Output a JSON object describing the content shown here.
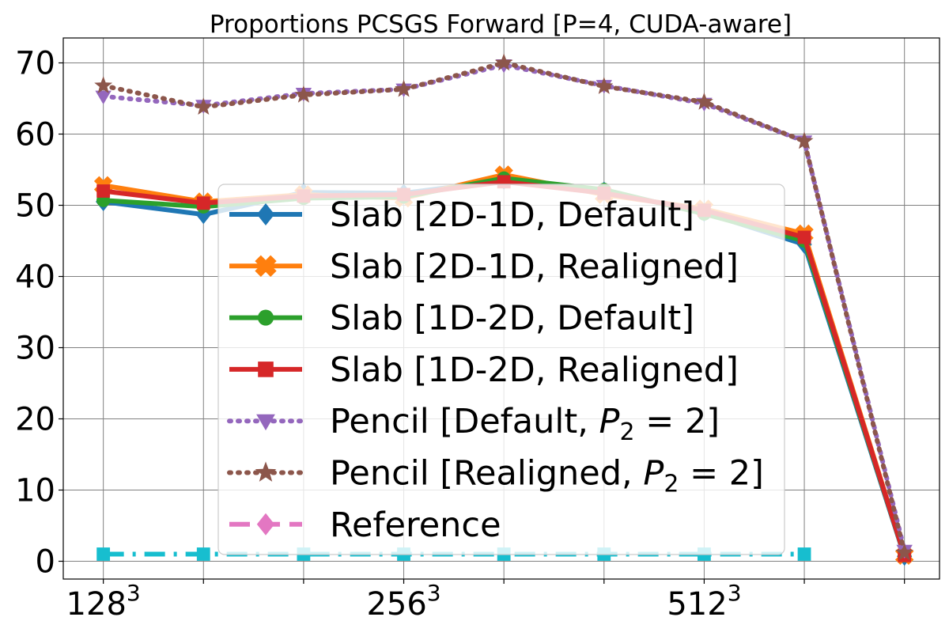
{
  "chart_data": {
    "type": "line",
    "title": "Proportions PCSGS Forward [P=4, CUDA-aware]",
    "xlabel": "",
    "ylabel": "",
    "x": [
      1,
      2,
      3,
      4,
      5,
      6,
      7,
      8,
      9
    ],
    "x_tick_labels": [
      {
        "x": 1,
        "base": "128",
        "sup": "3"
      },
      {
        "x": 2,
        "base": "",
        "sup": ""
      },
      {
        "x": 3,
        "base": "",
        "sup": ""
      },
      {
        "x": 4,
        "base": "256",
        "sup": "3"
      },
      {
        "x": 5,
        "base": "",
        "sup": ""
      },
      {
        "x": 6,
        "base": "",
        "sup": ""
      },
      {
        "x": 7,
        "base": "512",
        "sup": "3"
      },
      {
        "x": 8,
        "base": "",
        "sup": ""
      },
      {
        "x": 9,
        "base": "",
        "sup": ""
      }
    ],
    "xlim": [
      0.6,
      9.35
    ],
    "ylim": [
      -2.5,
      73.5
    ],
    "y_ticks": [
      0,
      10,
      20,
      30,
      40,
      50,
      60,
      70
    ],
    "grid": true,
    "legend_position": "center",
    "series": [
      {
        "name": "Slab [2D-1D, Default]",
        "color": "#1f77b4",
        "marker": "diamond",
        "line_style": "solid",
        "values": [
          50.5,
          48.7,
          51.8,
          51.7,
          53.5,
          52.0,
          49.0,
          44.5,
          0.7
        ]
      },
      {
        "name": "Slab [2D-1D, Realigned]",
        "color": "#ff7f0e",
        "marker": "x-filled",
        "line_style": "solid",
        "values": [
          52.8,
          50.5,
          51.5,
          51.0,
          54.3,
          51.5,
          49.5,
          46.0,
          0.8
        ]
      },
      {
        "name": "Slab [1D-2D, Default]",
        "color": "#2ca02c",
        "marker": "circle",
        "line_style": "solid",
        "values": [
          50.7,
          49.8,
          51.0,
          51.2,
          53.8,
          52.2,
          48.8,
          45.0,
          0.8
        ]
      },
      {
        "name": "Slab [1D-2D, Realigned]",
        "color": "#d62728",
        "marker": "square",
        "line_style": "solid",
        "values": [
          52.0,
          50.3,
          51.3,
          51.5,
          53.3,
          51.7,
          49.3,
          45.5,
          0.8
        ]
      },
      {
        "name_prefix": "Pencil [Default, ",
        "name_math": "P",
        "name_sub": "2",
        "name_suffix": " = 2]",
        "color": "#9467bd",
        "marker": "triangle-down",
        "line_style": "dotted",
        "values": [
          65.3,
          64.0,
          65.7,
          66.3,
          69.7,
          66.8,
          64.3,
          59.0,
          1.5
        ]
      },
      {
        "name_prefix": "Pencil [Realigned, ",
        "name_math": "P",
        "name_sub": "2",
        "name_suffix": " = 2]",
        "color": "#8c564b",
        "marker": "star",
        "line_style": "dotted",
        "values": [
          66.8,
          63.8,
          65.5,
          66.3,
          70.0,
          66.7,
          64.5,
          59.0,
          1.2
        ]
      },
      {
        "name": "Reference",
        "color": "#e377c2",
        "marker": "diamond",
        "line_style": "dashed",
        "values": null
      },
      {
        "name": "",
        "color": "#17becf",
        "marker": "square",
        "line_style": "dashdot",
        "values": [
          1.0,
          1.0,
          1.0,
          1.0,
          1.0,
          1.0,
          1.0,
          1.0,
          null
        ]
      }
    ]
  }
}
